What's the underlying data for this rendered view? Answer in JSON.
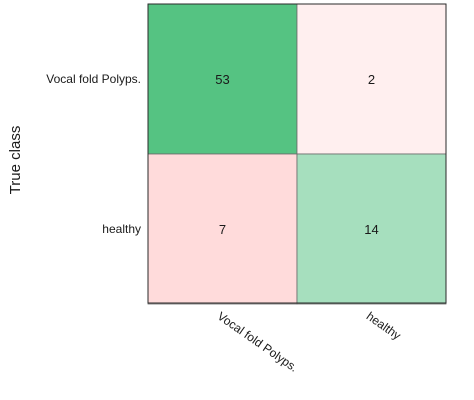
{
  "chart_data": {
    "type": "heatmap",
    "title": "",
    "ylabel": "True class",
    "xlabel": "",
    "row_labels": [
      "Vocal fold Polyps.",
      "healthy"
    ],
    "col_labels": [
      "Vocal fold Polyps.",
      "healthy"
    ],
    "values": [
      [
        53,
        2
      ],
      [
        7,
        14
      ]
    ],
    "colors": {
      "correct": "#3dba70",
      "incorrect": "#ff8f8f"
    }
  }
}
